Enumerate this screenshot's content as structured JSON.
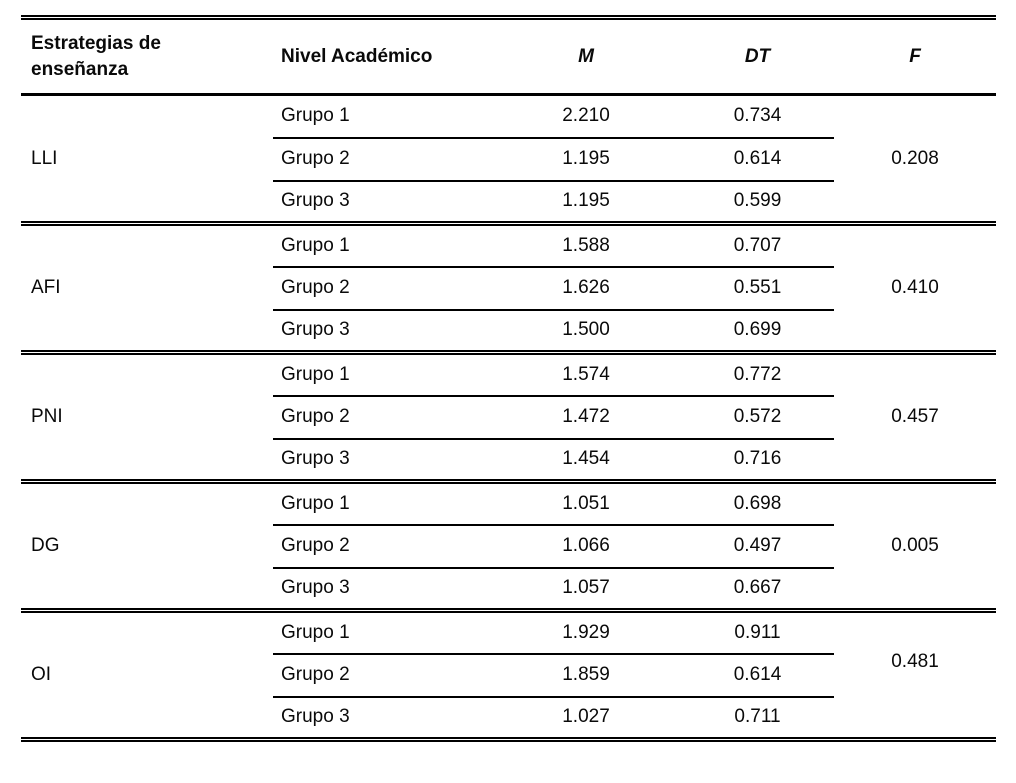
{
  "colors": {
    "background": "#ffffff",
    "text": "#0a0a0a",
    "rule": "#000000"
  },
  "table": {
    "headers": {
      "col1": "Estrategias de enseñanza",
      "col2": "Nivel Académico",
      "col3": "M",
      "col4": "DT",
      "col5": "F"
    },
    "groups": [
      {
        "strategy": "LLI",
        "f": "0.208",
        "rows": [
          {
            "nivel": "Grupo 1",
            "m": "2.210",
            "dt": "0.734"
          },
          {
            "nivel": "Grupo 2",
            "m": "1.195",
            "dt": "0.614"
          },
          {
            "nivel": "Grupo 3",
            "m": "1.195",
            "dt": "0.599"
          }
        ]
      },
      {
        "strategy": "AFI",
        "f": "0.410",
        "rows": [
          {
            "nivel": "Grupo 1",
            "m": "1.588",
            "dt": "0.707"
          },
          {
            "nivel": "Grupo 2",
            "m": "1.626",
            "dt": "0.551"
          },
          {
            "nivel": "Grupo 3",
            "m": "1.500",
            "dt": "0.699"
          }
        ]
      },
      {
        "strategy": "PNI",
        "f": "0.457",
        "rows": [
          {
            "nivel": "Grupo 1",
            "m": "1.574",
            "dt": "0.772"
          },
          {
            "nivel": "Grupo 2",
            "m": "1.472",
            "dt": "0.572"
          },
          {
            "nivel": "Grupo 3",
            "m": "1.454",
            "dt": "0.716"
          }
        ]
      },
      {
        "strategy": "DG",
        "f": "0.005",
        "rows": [
          {
            "nivel": "Grupo 1",
            "m": "1.051",
            "dt": "0.698"
          },
          {
            "nivel": "Grupo 2",
            "m": "1.066",
            "dt": "0.497"
          },
          {
            "nivel": "Grupo 3",
            "m": "1.057",
            "dt": "0.667"
          }
        ]
      },
      {
        "strategy": "OI",
        "f": "0.481",
        "rows": [
          {
            "nivel": "Grupo 1",
            "m": "1.929",
            "dt": "0.911"
          },
          {
            "nivel": "Grupo 2",
            "m": "1.859",
            "dt": "0.614"
          },
          {
            "nivel": "Grupo 3",
            "m": "1.027",
            "dt": "0.711"
          }
        ]
      }
    ]
  }
}
